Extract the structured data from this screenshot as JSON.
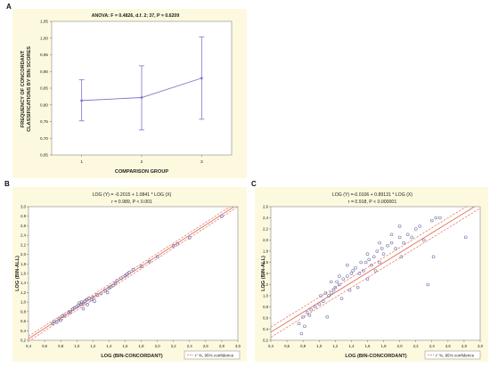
{
  "panels": {
    "a": "A",
    "b": "B",
    "c": "C"
  },
  "chart_data": [
    {
      "id": "A",
      "type": "line",
      "title": "ANOVA: F = 0.4826, d.f. 2; 37, P = 0.6209",
      "xlabel": "COMPARISON GROUP",
      "ylabel": [
        "FREQUENCY OF CONCORDANT",
        "CLASSIFICATIONS BY BIN SCORES"
      ],
      "categories": [
        "1",
        "2",
        "3"
      ],
      "values": [
        0.813,
        0.822,
        0.88
      ],
      "error_low": [
        0.752,
        0.725,
        0.757
      ],
      "error_high": [
        0.875,
        0.917,
        1.003
      ],
      "ylim": [
        0.65,
        1.05
      ],
      "yticks": [
        "1,05",
        "1,00",
        "0,95",
        "0,90",
        "0,85",
        "0,80",
        "0,75",
        "0,70",
        "0,65"
      ],
      "colors": {
        "line": "#7b77c7",
        "bg": "#fcf9df"
      }
    },
    {
      "id": "B",
      "type": "scatter",
      "title": "LOG (Y) = -0.2015 + 1.0841 * LOG (X)",
      "subtitle": "r = 0.989, P < 0.001",
      "xlabel": "LOG (BIN-CONCORDANT)",
      "ylabel": "LOG (BIN-ALL)",
      "xlim": [
        0.4,
        3.0
      ],
      "ylim": [
        0.2,
        3.0
      ],
      "xticks": [
        "0,4",
        "0,6",
        "0,8",
        "1,0",
        "1,2",
        "1,4",
        "1,6",
        "1,8",
        "2,0",
        "2,2",
        "2,4",
        "2,6",
        "2,8",
        "3,0"
      ],
      "yticks": [
        "3,0",
        "2,8",
        "2,6",
        "2,4",
        "2,2",
        "2,0",
        "1,8",
        "1,6",
        "1,4",
        "1,2",
        "1,0",
        "0,8",
        "0,6",
        "0,4",
        "0,2"
      ],
      "fit": {
        "intercept": -0.2015,
        "slope": 1.0841,
        "ci": 0.04
      },
      "legend": "r’ %, 95% confidence",
      "points": [
        [
          0.7,
          0.55
        ],
        [
          0.72,
          0.6
        ],
        [
          0.75,
          0.58
        ],
        [
          0.78,
          0.65
        ],
        [
          0.8,
          0.62
        ],
        [
          0.82,
          0.7
        ],
        [
          0.85,
          0.72
        ],
        [
          0.9,
          0.78
        ],
        [
          0.92,
          0.8
        ],
        [
          0.95,
          0.85
        ],
        [
          0.97,
          0.88
        ],
        [
          1.0,
          0.9
        ],
        [
          1.02,
          0.93
        ],
        [
          1.03,
          0.98
        ],
        [
          1.05,
          0.95
        ],
        [
          1.06,
          1.0
        ],
        [
          1.08,
          0.97
        ],
        [
          1.1,
          1.02
        ],
        [
          1.12,
          1.05
        ],
        [
          1.13,
          0.95
        ],
        [
          1.15,
          1.08
        ],
        [
          1.18,
          1.05
        ],
        [
          1.2,
          1.1
        ],
        [
          1.22,
          1.02
        ],
        [
          1.25,
          1.15
        ],
        [
          1.3,
          1.18
        ],
        [
          1.35,
          1.25
        ],
        [
          1.4,
          1.3
        ],
        [
          1.42,
          1.32
        ],
        [
          1.45,
          1.35
        ],
        [
          1.48,
          1.4
        ],
        [
          1.5,
          1.45
        ],
        [
          1.55,
          1.5
        ],
        [
          1.6,
          1.55
        ],
        [
          1.62,
          1.58
        ],
        [
          1.65,
          1.62
        ],
        [
          1.7,
          1.68
        ],
        [
          1.8,
          1.75
        ],
        [
          1.9,
          1.85
        ],
        [
          2.0,
          1.95
        ],
        [
          2.2,
          2.18
        ],
        [
          2.25,
          2.22
        ],
        [
          2.4,
          2.35
        ],
        [
          2.8,
          2.8
        ],
        [
          1.08,
          0.86
        ],
        [
          1.38,
          1.2
        ]
      ],
      "colors": {
        "point": "#6e6aa8",
        "fit": "#e0725c",
        "bg": "#fcf9df"
      }
    },
    {
      "id": "C",
      "type": "scatter",
      "title": "LOG (Y) =-0.0106 + 0.89131 * LOG (X)",
      "subtitle": "r = 0.918, P < 0.000001",
      "xlabel": "LOG (BIN-CONCORDANT)",
      "ylabel": "LOG (BIN-ALL)",
      "xlim": [
        0.4,
        3.0
      ],
      "ylim": [
        0.2,
        2.6
      ],
      "xticks": [
        "0,4",
        "0,6",
        "0,8",
        "1,0",
        "1,2",
        "1,4",
        "1,6",
        "1,8",
        "2,0",
        "2,2",
        "2,4",
        "2,6",
        "2,8",
        "3,0"
      ],
      "yticks": [
        "2,6",
        "2,4",
        "2,2",
        "2,0",
        "1,8",
        "1,6",
        "1,4",
        "1,2",
        "1,0",
        "0,8",
        "0,6",
        "0,4",
        "0,2"
      ],
      "fit": {
        "intercept": -0.0106,
        "slope": 0.89131,
        "ci": 0.07
      },
      "legend": "r’ %, 95% confidence",
      "points": [
        [
          0.75,
          0.5
        ],
        [
          0.78,
          0.32
        ],
        [
          0.8,
          0.62
        ],
        [
          0.82,
          0.45
        ],
        [
          0.85,
          0.7
        ],
        [
          0.88,
          0.65
        ],
        [
          0.9,
          0.75
        ],
        [
          0.95,
          0.8
        ],
        [
          1.0,
          0.85
        ],
        [
          1.02,
          1.0
        ],
        [
          1.05,
          0.9
        ],
        [
          1.08,
          1.05
        ],
        [
          1.1,
          0.62
        ],
        [
          1.12,
          1.0
        ],
        [
          1.15,
          1.05
        ],
        [
          1.18,
          1.1
        ],
        [
          1.2,
          1.15
        ],
        [
          1.22,
          1.25
        ],
        [
          1.25,
          1.2
        ],
        [
          1.28,
          0.95
        ],
        [
          1.3,
          1.3
        ],
        [
          1.35,
          1.35
        ],
        [
          1.38,
          1.1
        ],
        [
          1.4,
          1.4
        ],
        [
          1.42,
          1.45
        ],
        [
          1.45,
          1.5
        ],
        [
          1.48,
          1.15
        ],
        [
          1.5,
          1.4
        ],
        [
          1.52,
          1.6
        ],
        [
          1.55,
          1.45
        ],
        [
          1.58,
          1.6
        ],
        [
          1.6,
          1.3
        ],
        [
          1.62,
          1.65
        ],
        [
          1.65,
          1.55
        ],
        [
          1.68,
          1.7
        ],
        [
          1.7,
          1.45
        ],
        [
          1.72,
          1.8
        ],
        [
          1.75,
          1.6
        ],
        [
          1.78,
          1.85
        ],
        [
          1.8,
          1.75
        ],
        [
          1.85,
          1.9
        ],
        [
          1.9,
          1.95
        ],
        [
          1.95,
          1.85
        ],
        [
          2.0,
          2.05
        ],
        [
          2.02,
          1.7
        ],
        [
          2.05,
          1.95
        ],
        [
          2.1,
          2.1
        ],
        [
          2.15,
          2.05
        ],
        [
          2.2,
          2.2
        ],
        [
          2.25,
          2.25
        ],
        [
          2.3,
          2.0
        ],
        [
          2.35,
          1.2
        ],
        [
          2.4,
          2.35
        ],
        [
          2.42,
          1.7
        ],
        [
          2.45,
          2.4
        ],
        [
          2.5,
          2.4
        ],
        [
          2.82,
          2.05
        ],
        [
          1.35,
          1.55
        ],
        [
          1.6,
          1.75
        ],
        [
          1.75,
          1.95
        ],
        [
          1.25,
          1.35
        ],
        [
          1.15,
          1.25
        ],
        [
          2.0,
          2.25
        ],
        [
          1.9,
          2.1
        ]
      ],
      "colors": {
        "point": "#6e6aa8",
        "fit": "#e0725c",
        "bg": "#fcf9df"
      }
    }
  ]
}
